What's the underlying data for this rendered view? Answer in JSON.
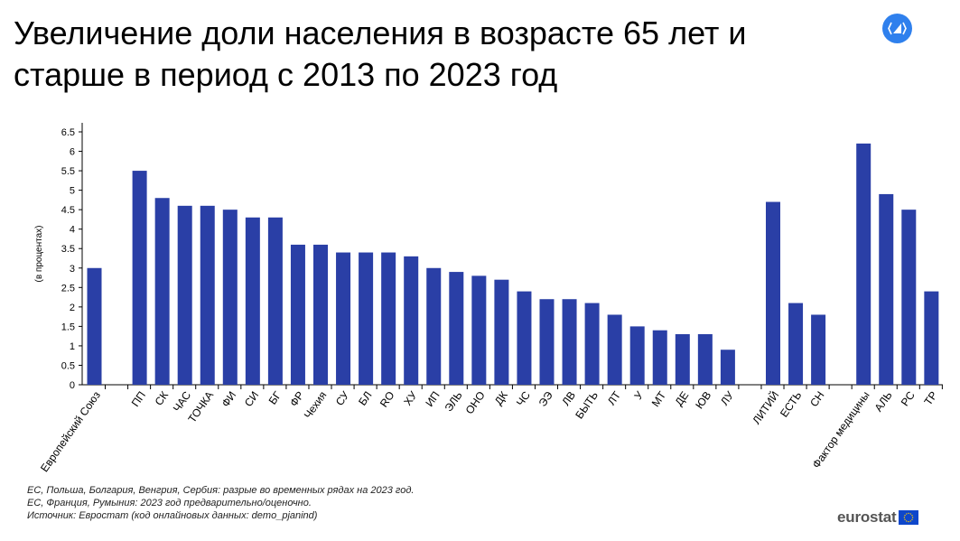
{
  "title": "Увеличение доли населения в возрасте 65 лет и старше в период с 2013 по 2023 год",
  "embed_icon": "code-embed-icon",
  "notes": [
    "ЕС, Польша, Болгария, Венгрия, Сербия: разрые во временных рядах на 2023 год.",
    "ЕС, Франция, Румыния: 2023 год предварительно/оценочно.",
    "Источник: Евростат (код онлайновых данных: demo_pjanind)"
  ],
  "logo": {
    "word": "eurostat",
    "flag_color": "#0e47cb",
    "star_color": "#ffcc00"
  },
  "colors": {
    "bar": "#2a3fa6",
    "axis": "#000000"
  },
  "chart_data": {
    "type": "bar",
    "ylabel": "(в процентах)",
    "xlabel": "",
    "ylim": [
      0,
      6.5
    ],
    "yticks": [
      "0",
      "0.5",
      "1",
      "1.5",
      "2",
      "2.5",
      "3",
      "3.5",
      "4",
      "4.5",
      "5",
      "5.5",
      "6",
      "6.5"
    ],
    "grid": false,
    "categories": [
      "Европейский Союз",
      "",
      "ПП",
      "СК",
      "ЧАС",
      "ТОЧКА",
      "ФИ",
      "СИ",
      "БГ",
      "ФР",
      "Чехия",
      "СУ",
      "БЛ",
      "RO",
      "ХУ",
      "ИП",
      "ЭЛЬ",
      "ОНО",
      "ДК",
      "ЧС",
      "ЭЭ",
      "ЛВ",
      "БЫТЬ",
      "ЛТ",
      "У",
      "МТ",
      "ДЕ",
      "ЮВ",
      "ЛУ",
      "",
      "ЛИТИЙ",
      "ЕСТЬ",
      "СН",
      "",
      "Фактор медицины",
      "АЛЬ",
      "РС",
      "ТР"
    ],
    "values": [
      3.0,
      null,
      5.5,
      4.8,
      4.6,
      4.6,
      4.5,
      4.3,
      4.3,
      3.6,
      3.6,
      3.4,
      3.4,
      3.4,
      3.3,
      3.0,
      2.9,
      2.8,
      2.7,
      2.4,
      2.2,
      2.2,
      2.1,
      1.8,
      1.5,
      1.4,
      1.3,
      1.3,
      0.9,
      null,
      4.7,
      2.1,
      1.8,
      null,
      6.2,
      4.9,
      4.5,
      2.4
    ]
  }
}
